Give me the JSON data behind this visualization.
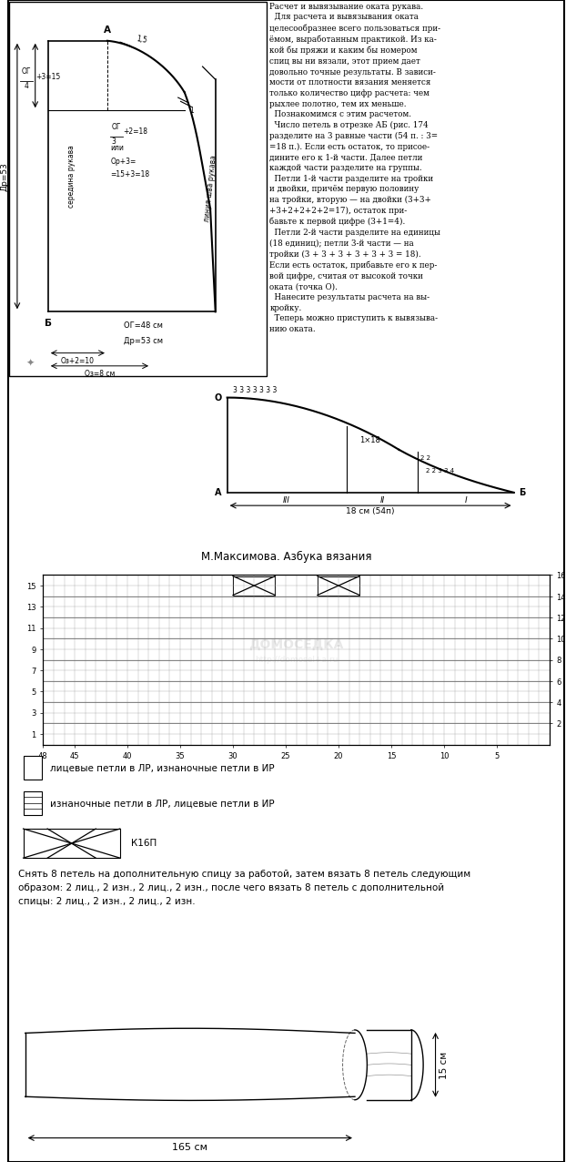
{
  "bg_color": "#ffffff",
  "page_width": 6.15,
  "page_height": 12.84,
  "right_text": "Расчет и вывязывание оката рукава.\n  Для расчета и вывязывания оката\nцелесообразнее всего пользоваться при-\nёмом, выработанным практикой. Из ка-\nкой бы пряжи и каким бы номером\nспиц вы ни вязали, этот прием дает\nдовольно точные результаты. В зависи-\nмости от плотности вязания меняется\nтолько количество цифр расчета: чем\nрыхлее полотно, тем их меньше.\n  Познакомимся с этим расчетом.\n  Число петель в отрезке АБ (рис. 174\nразделите на 3 равные части (54 п. : 3=\n=18 п.). Если есть остаток, то присое-\nдините его к 1-й части. Далее петли\nкаждой части разделите на группы.\n  Петли 1-й части разделите на тройки\nи двойки, причём первую половину\nна тройки, вторую — на двойки (3+3+\n+3+2+2+2+2=17), остаток при-\nбавьте к первой цифре (3+1=4).\n  Петли 2-й части разделите на единицы\n(18 единиц); петли 3-й части — на\nтройки (3 + 3 + 3 + 3 + 3 + 3 = 18).\nЕсли есть остаток, прибавьте его к пер-\nвой цифре, считая от высокой точки\nоката (точка О).\n  Нанесите результаты расчета на вы-\nкройку.\n  Теперь можно приступить к вывязыва-\nнию оката.",
  "legend_item1": "лицевые петли в ЛР, изнаночные петли в ИР",
  "legend_item2": "изнаночные петли в ЛР, лицевые петли в ИР",
  "legend_item3": "К16П",
  "desc_text": "Снять 8 петель на дополнительную спицу за работой, затем вязать 8 петель следующим\nобразом: 2 лиц., 2 изн., 2 лиц., 2 изн., после чего вязать 8 петель с дополнительной\nспицы: 2 лиц., 2 изн., 2 лиц., 2 изн.",
  "label_165": "165 см",
  "label_15": "15 см",
  "label_maks": "М.Максимова. Азбука вязания"
}
